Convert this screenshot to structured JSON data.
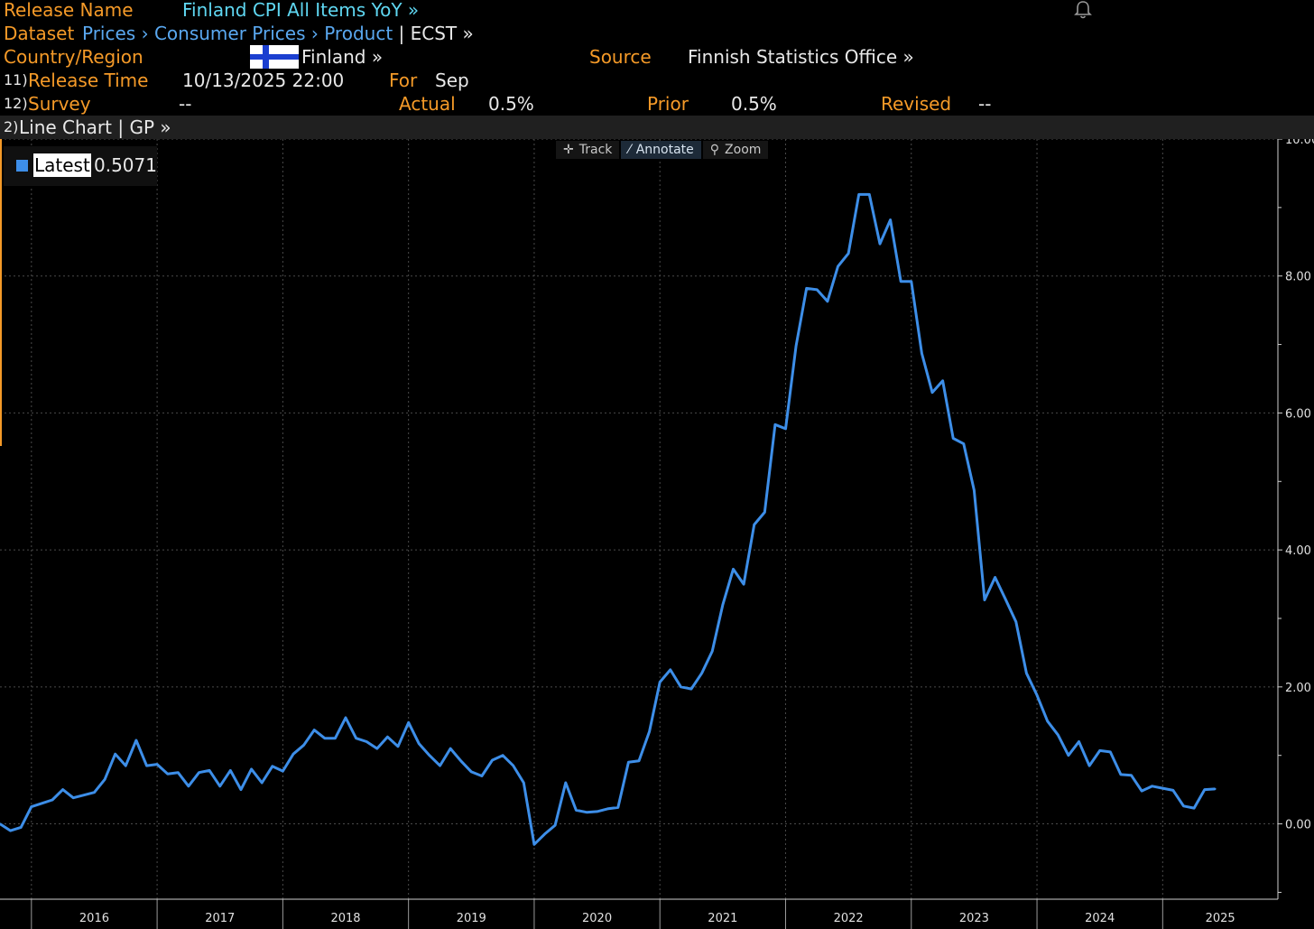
{
  "header": {
    "release_name_label": "Release Name",
    "release_name_value": "Finland CPI All Items YoY »",
    "dataset_label": "Dataset",
    "dataset_path": [
      {
        "label": "Prices",
        "sep": " › "
      },
      {
        "label": "Consumer Prices",
        "sep": " › "
      },
      {
        "label": "Product",
        "sep": ""
      }
    ],
    "dataset_code": "| ECST »",
    "country_label": "Country/Region",
    "country_value": "Finland »",
    "source_label": "Source",
    "source_value": "Finnish Statistics Office »",
    "release_time_num": "11)",
    "release_time_label": "Release Time",
    "release_time_value": "10/13/2025 22:00",
    "for_label": "For",
    "for_value": "Sep",
    "survey_num": "12)",
    "survey_label": "Survey",
    "survey_value": "--",
    "actual_label": "Actual",
    "actual_value": "0.5%",
    "prior_label": "Prior",
    "prior_value": "0.5%",
    "revised_label": "Revised",
    "revised_value": "--"
  },
  "toolbar": {
    "num": "2)",
    "label": "Line Chart | GP »"
  },
  "chart_tools": [
    {
      "icon": "crosshair-icon",
      "glyph": "✛",
      "label": "Track"
    },
    {
      "icon": "pencil-icon",
      "glyph": "⁄",
      "label": "Annotate"
    },
    {
      "icon": "magnifier-icon",
      "glyph": "⚲",
      "label": "Zoom"
    }
  ],
  "legend": {
    "label": "Latest",
    "value": "0.5071"
  },
  "colors": {
    "accent_orange": "#f59a28",
    "link_cyan": "#5fd7f2",
    "link_blue": "#5aa8f0",
    "series_blue": "#3d8ee8"
  },
  "chart_data": {
    "type": "line",
    "ylim": [
      -1.1,
      10.0
    ],
    "y_ticks": [
      0,
      2,
      4,
      6,
      8,
      10
    ],
    "y_tick_labels": [
      "0.00",
      "2.00",
      "4.00",
      "6.00",
      "8.00",
      "10.00"
    ],
    "x_range": [
      "2015-10",
      "2025-12"
    ],
    "x_labels": [
      "2016",
      "2017",
      "2018",
      "2019",
      "2020",
      "2021",
      "2022",
      "2023",
      "2024",
      "2025"
    ],
    "grid": true,
    "legend": "top-left",
    "series": [
      {
        "name": "Latest",
        "start": "2015-10",
        "frequency": "monthly",
        "values": [
          0.0,
          -0.1,
          -0.05,
          0.25,
          0.3,
          0.35,
          0.5,
          0.38,
          0.42,
          0.46,
          0.65,
          1.02,
          0.85,
          1.22,
          0.85,
          0.87,
          0.73,
          0.75,
          0.55,
          0.75,
          0.78,
          0.55,
          0.78,
          0.5,
          0.8,
          0.6,
          0.84,
          0.77,
          1.02,
          1.15,
          1.37,
          1.25,
          1.25,
          1.55,
          1.25,
          1.2,
          1.1,
          1.27,
          1.13,
          1.48,
          1.17,
          1.0,
          0.85,
          1.1,
          0.92,
          0.76,
          0.7,
          0.93,
          1.0,
          0.85,
          0.6,
          -0.3,
          -0.15,
          -0.02,
          0.6,
          0.2,
          0.17,
          0.18,
          0.22,
          0.24,
          0.9,
          0.92,
          1.35,
          2.07,
          2.25,
          2.0,
          1.97,
          2.2,
          2.52,
          3.2,
          3.72,
          3.5,
          4.37,
          4.55,
          5.83,
          5.77,
          6.98,
          7.82,
          7.8,
          7.63,
          8.14,
          8.33,
          9.19,
          9.19,
          8.47,
          8.82,
          7.92,
          7.92,
          6.87,
          6.3,
          6.47,
          5.63,
          5.55,
          4.87,
          3.27,
          3.6,
          3.28,
          2.95,
          2.2,
          1.88,
          1.5,
          1.3,
          1.0,
          1.2,
          0.85,
          1.07,
          1.05,
          0.72,
          0.71,
          0.48,
          0.55,
          0.52,
          0.49,
          0.26,
          0.23,
          0.5,
          0.51
        ]
      }
    ]
  }
}
